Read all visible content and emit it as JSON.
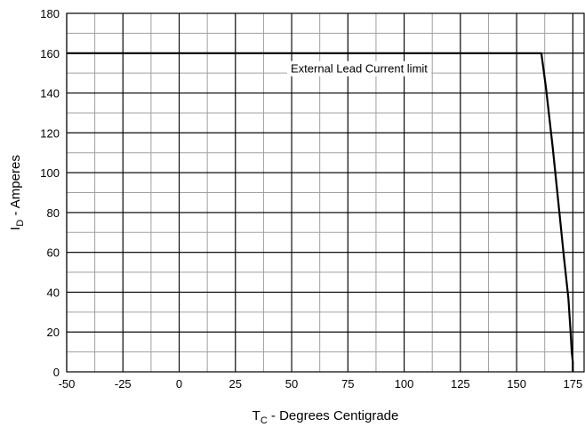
{
  "chart_data": {
    "type": "line",
    "xlabel_main": "T",
    "xlabel_sub": "C",
    "xlabel_rest": " - Degrees Centigrade",
    "ylabel_main": "I",
    "ylabel_sub": "D",
    "ylabel_rest": " - Amperes",
    "xlim": [
      -50,
      180
    ],
    "ylim": [
      0,
      180
    ],
    "x_ticks": [
      -50,
      -25,
      0,
      25,
      50,
      75,
      100,
      125,
      150,
      175
    ],
    "y_ticks": [
      0,
      20,
      40,
      60,
      80,
      100,
      120,
      140,
      160,
      180
    ],
    "x_minor_step": 12.5,
    "y_minor_step": 10,
    "grid": true,
    "annotation": {
      "text": "External Lead Current limit",
      "x": 80,
      "y": 152
    },
    "series": [
      {
        "x": [
          -50,
          161,
          163,
          166,
          169,
          171,
          173,
          174,
          174.5,
          175,
          175
        ],
        "y": [
          160,
          160,
          143,
          113,
          80,
          58,
          37,
          20,
          10,
          5,
          0
        ]
      }
    ]
  }
}
